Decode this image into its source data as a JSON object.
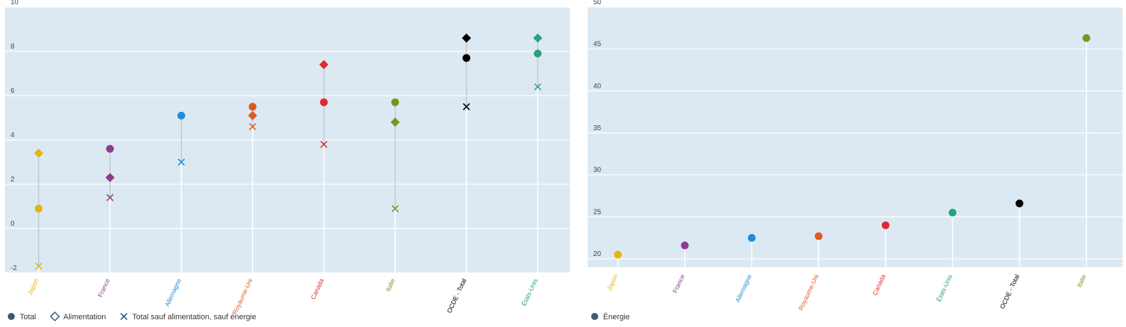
{
  "colors": {
    "panel_bg": "#dde9f2",
    "gridline": "#ffffff",
    "stem": "#b8c2ca",
    "legend_marker": "#3a5a72"
  },
  "legend_left": [
    {
      "label": "Total",
      "marker": "circle"
    },
    {
      "label": "Alimentation",
      "marker": "diamond"
    },
    {
      "label": "Total sauf alimentation, sauf énergie",
      "marker": "cross"
    }
  ],
  "legend_right": [
    {
      "label": "Énergie",
      "marker": "circle"
    }
  ],
  "chart_data": [
    {
      "type": "scatter",
      "title": "",
      "xlabel": "",
      "ylabel": "",
      "ylim": [
        -2,
        10
      ],
      "yticks": [
        -2,
        0,
        2,
        4,
        6,
        8,
        10
      ],
      "grid": true,
      "legend_position": "bottom-left",
      "categories": [
        "Japon",
        "France",
        "Allemagne",
        "Royaume-Uni",
        "Canada",
        "Italie",
        "OCDE - Total",
        "États-Unis"
      ],
      "category_colors": [
        "#e8b40c",
        "#8e3a8e",
        "#1f8dd6",
        "#e05a1e",
        "#e02a30",
        "#6f9a1e",
        "#000000",
        "#2aa37a"
      ],
      "series": [
        {
          "name": "Total",
          "marker": "circle",
          "values": [
            0.9,
            3.6,
            5.1,
            5.5,
            5.7,
            5.7,
            7.7,
            7.9
          ]
        },
        {
          "name": "Alimentation",
          "marker": "diamond",
          "values": [
            3.4,
            2.3,
            null,
            5.1,
            7.4,
            4.8,
            8.6,
            8.6
          ]
        },
        {
          "name": "Total sauf alimentation, sauf énergie",
          "marker": "cross",
          "values": [
            -1.7,
            1.4,
            3.0,
            4.6,
            3.8,
            0.9,
            5.5,
            6.4
          ]
        }
      ]
    },
    {
      "type": "scatter",
      "title": "",
      "xlabel": "",
      "ylabel": "",
      "ylim": [
        19,
        50
      ],
      "yticks": [
        20,
        25,
        30,
        35,
        40,
        45,
        50
      ],
      "grid": true,
      "legend_position": "bottom-left",
      "categories": [
        "Japon",
        "France",
        "Allemagne",
        "Royaume-Uni",
        "Canada",
        "États-Unis",
        "OCDE - Total",
        "Italie"
      ],
      "category_colors": [
        "#e8b40c",
        "#8e3a8e",
        "#1f8dd6",
        "#e05a1e",
        "#e02a30",
        "#2aa37a",
        "#000000",
        "#6f9a1e"
      ],
      "series": [
        {
          "name": "Énergie",
          "marker": "circle",
          "values": [
            20.5,
            21.6,
            22.5,
            22.7,
            24.0,
            25.5,
            26.6,
            46.3
          ]
        }
      ]
    }
  ]
}
